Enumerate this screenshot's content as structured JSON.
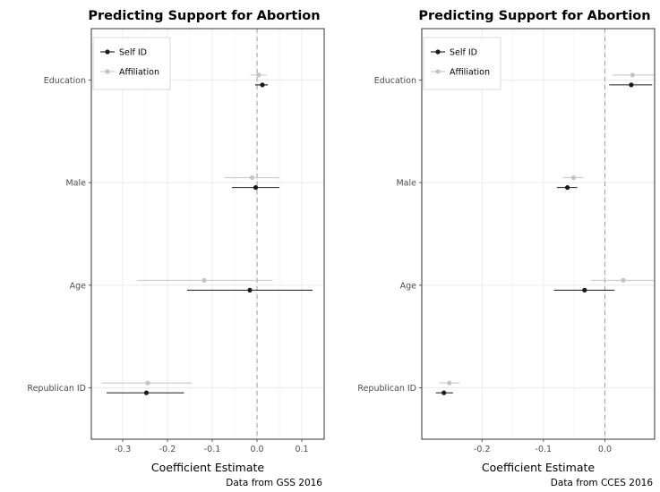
{
  "chart_data": [
    {
      "type": "scatter",
      "title": "Predicting Support for Abortion",
      "xlabel": "Coefficient Estimate",
      "ylabel": "",
      "caption": "Data from GSS 2016",
      "xlim": [
        -0.37,
        0.15
      ],
      "xticks": [
        -0.3,
        -0.2,
        -0.1,
        0.0,
        0.1
      ],
      "xtick_labels": [
        "-0.3",
        "-0.2",
        "-0.1",
        "0.0",
        "0.1"
      ],
      "categories": [
        "Education",
        "Male",
        "Age",
        "Republican ID"
      ],
      "reference_line": 0,
      "grid": true,
      "legend_position": "top-left",
      "series": [
        {
          "name": "Self ID",
          "color": "#1a1a1a",
          "points": [
            {
              "category": "Education",
              "estimate": 0.012,
              "low": -0.004,
              "high": 0.024
            },
            {
              "category": "Male",
              "estimate": -0.003,
              "low": -0.056,
              "high": 0.05
            },
            {
              "category": "Age",
              "estimate": -0.016,
              "low": -0.156,
              "high": 0.124
            },
            {
              "category": "Republican ID",
              "estimate": -0.247,
              "low": -0.336,
              "high": -0.163
            }
          ]
        },
        {
          "name": "Affiliation",
          "color": "#c4c4c4",
          "points": [
            {
              "category": "Education",
              "estimate": 0.004,
              "low": -0.015,
              "high": 0.021
            },
            {
              "category": "Male",
              "estimate": -0.011,
              "low": -0.073,
              "high": 0.05
            },
            {
              "category": "Age",
              "estimate": -0.118,
              "low": -0.268,
              "high": 0.035
            },
            {
              "category": "Republican ID",
              "estimate": -0.244,
              "low": -0.347,
              "high": -0.145
            }
          ]
        }
      ]
    },
    {
      "type": "scatter",
      "title": "Predicting Support for Abortion",
      "xlabel": "Coefficient Estimate",
      "ylabel": "",
      "caption": "Data from CCES 2016",
      "xlim": [
        -0.298,
        0.081
      ],
      "xticks": [
        -0.2,
        -0.1,
        0.0
      ],
      "xtick_labels": [
        "-0.2",
        "-0.1",
        "0.0"
      ],
      "categories": [
        "Education",
        "Male",
        "Age",
        "Republican ID"
      ],
      "reference_line": 0,
      "grid": true,
      "legend_position": "top-left",
      "series": [
        {
          "name": "Self ID",
          "color": "#1a1a1a",
          "points": [
            {
              "category": "Education",
              "estimate": 0.043,
              "low": 0.007,
              "high": 0.077
            },
            {
              "category": "Male",
              "estimate": -0.061,
              "low": -0.078,
              "high": -0.045
            },
            {
              "category": "Age",
              "estimate": -0.033,
              "low": -0.083,
              "high": 0.016
            },
            {
              "category": "Republican ID",
              "estimate": -0.262,
              "low": -0.275,
              "high": -0.247
            }
          ]
        },
        {
          "name": "Affiliation",
          "color": "#c4c4c4",
          "points": [
            {
              "category": "Education",
              "estimate": 0.045,
              "low": 0.012,
              "high": 0.08
            },
            {
              "category": "Male",
              "estimate": -0.051,
              "low": -0.068,
              "high": -0.035
            },
            {
              "category": "Age",
              "estimate": 0.03,
              "low": -0.023,
              "high": 0.081
            },
            {
              "category": "Republican ID",
              "estimate": -0.253,
              "low": -0.269,
              "high": -0.237
            }
          ]
        }
      ]
    }
  ]
}
